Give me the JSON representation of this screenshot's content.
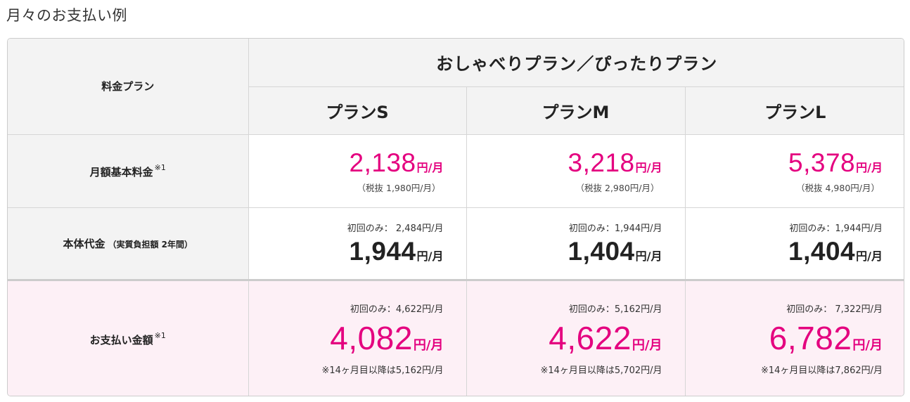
{
  "title": "月々のお支払い例",
  "table": {
    "label_header": "料金プラン",
    "group_header": "おしゃべりプラン／ぴったりプラン",
    "plans": [
      "プランS",
      "プランM",
      "プランL"
    ],
    "rows": {
      "monthly": {
        "label": "月額基本料金",
        "footnote": "※1",
        "cells": [
          {
            "amount": "2,138",
            "unit": "円/月",
            "note": "（税抜 1,980円/月）"
          },
          {
            "amount": "3,218",
            "unit": "円/月",
            "note": "（税抜 2,980円/月）"
          },
          {
            "amount": "5,378",
            "unit": "円/月",
            "note": "（税抜 4,980円/月）"
          }
        ]
      },
      "device": {
        "label": "本体代金",
        "sub": "（実質負担額 2年間）",
        "cells": [
          {
            "first": "初回のみ： 2,484円/月",
            "amount": "1,944",
            "unit": "円/月"
          },
          {
            "first": "初回のみ：1,944円/月",
            "amount": "1,404",
            "unit": "円/月"
          },
          {
            "first": "初回のみ：1,944円/月",
            "amount": "1,404",
            "unit": "円/月"
          }
        ]
      },
      "payment": {
        "label": "お支払い金額",
        "footnote": "※1",
        "cells": [
          {
            "first": "初回のみ：4,622円/月",
            "amount": "4,082",
            "unit": "円/月",
            "note": "※14ヶ月目以降は5,162円/月"
          },
          {
            "first": "初回のみ：5,162円/月",
            "amount": "4,622",
            "unit": "円/月",
            "note": "※14ヶ月目以降は5,702円/月"
          },
          {
            "first": "初回のみ： 7,322円/月",
            "amount": "6,782",
            "unit": "円/月",
            "note": "※14ヶ月目以降は7,862円/月"
          }
        ]
      }
    }
  },
  "colors": {
    "accent": "#e4007f",
    "header_bg": "#f3f3f3",
    "payment_bg": "#fdf0f6"
  }
}
